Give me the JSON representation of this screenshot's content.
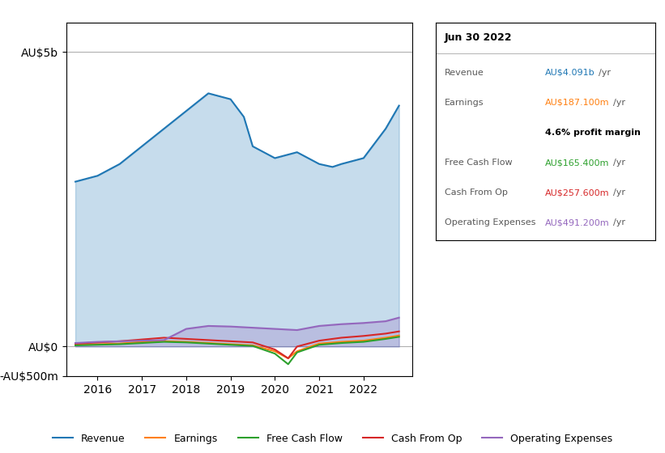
{
  "chart_data": {
    "type": "line",
    "xlim": [
      2015.3,
      2023.1
    ],
    "xticks": [
      2016,
      2017,
      2018,
      2019,
      2020,
      2021,
      2022
    ],
    "ylim": [
      -500,
      5500
    ],
    "yticks": [
      {
        "value": -500,
        "label": "-AU$500m"
      },
      {
        "value": 0,
        "label": "AU$0"
      },
      {
        "value": 5000,
        "label": "AU$5b"
      }
    ],
    "grid": true,
    "legend": "lower center",
    "series": [
      {
        "name": "Revenue",
        "type": "area",
        "x": [
          2015.5,
          2016.0,
          2016.5,
          2017.0,
          2017.5,
          2018.0,
          2018.5,
          2019.0,
          2019.3,
          2019.5,
          2020.0,
          2020.5,
          2021.0,
          2021.3,
          2021.5,
          2022.0,
          2022.5,
          2022.8
        ],
        "values": [
          2800,
          2900,
          3100,
          3400,
          3700,
          4000,
          4300,
          4200,
          3900,
          3400,
          3200,
          3300,
          3100,
          3050,
          3100,
          3200,
          3700,
          4091
        ]
      },
      {
        "name": "Earnings",
        "type": "line",
        "x": [
          2015.5,
          2016.0,
          2016.5,
          2017.0,
          2017.5,
          2018.0,
          2018.5,
          2019.0,
          2019.5,
          2020.0,
          2020.3,
          2020.5,
          2021.0,
          2021.5,
          2022.0,
          2022.5,
          2022.8
        ],
        "values": [
          30,
          40,
          50,
          80,
          90,
          80,
          60,
          40,
          20,
          -80,
          -200,
          -80,
          50,
          80,
          100,
          150,
          187
        ]
      },
      {
        "name": "Free Cash Flow",
        "type": "line",
        "x": [
          2015.5,
          2016.0,
          2016.5,
          2017.0,
          2017.5,
          2018.0,
          2018.5,
          2019.0,
          2019.5,
          2020.0,
          2020.3,
          2020.5,
          2021.0,
          2021.5,
          2022.0,
          2022.5,
          2022.8
        ],
        "values": [
          20,
          30,
          40,
          60,
          80,
          70,
          50,
          30,
          10,
          -120,
          -300,
          -100,
          30,
          60,
          80,
          130,
          165
        ]
      },
      {
        "name": "Cash From Op",
        "type": "line",
        "x": [
          2015.5,
          2016.0,
          2016.5,
          2017.0,
          2017.5,
          2018.0,
          2018.5,
          2019.0,
          2019.5,
          2020.0,
          2020.3,
          2020.5,
          2021.0,
          2021.5,
          2022.0,
          2022.5,
          2022.8
        ],
        "values": [
          50,
          70,
          90,
          120,
          150,
          130,
          110,
          90,
          70,
          -50,
          -200,
          0,
          100,
          150,
          180,
          220,
          257
        ]
      },
      {
        "name": "Operating Expenses",
        "type": "area",
        "x": [
          2015.5,
          2016.0,
          2016.5,
          2017.0,
          2017.5,
          2018.0,
          2018.5,
          2019.0,
          2019.5,
          2020.0,
          2020.5,
          2021.0,
          2021.5,
          2022.0,
          2022.5,
          2022.8
        ],
        "values": [
          60,
          80,
          90,
          100,
          110,
          300,
          350,
          340,
          320,
          300,
          280,
          350,
          380,
          400,
          430,
          491
        ]
      }
    ],
    "annotations": {
      "title": "Jun 30 2022",
      "rows": [
        {
          "label": "Revenue",
          "text": "AU$4.091b",
          "unit": "/yr"
        },
        {
          "label": "Earnings",
          "text": "AU$187.100m",
          "unit": "/yr"
        },
        {
          "text": "4.6% profit margin",
          "bold": true
        },
        {
          "label": "Free Cash Flow",
          "text": "AU$165.400m",
          "unit": "/yr"
        },
        {
          "label": "Cash From Op",
          "text": "AU$257.600m",
          "unit": "/yr"
        },
        {
          "label": "Operating Expenses",
          "text": "AU$491.200m",
          "unit": "/yr"
        }
      ]
    }
  }
}
